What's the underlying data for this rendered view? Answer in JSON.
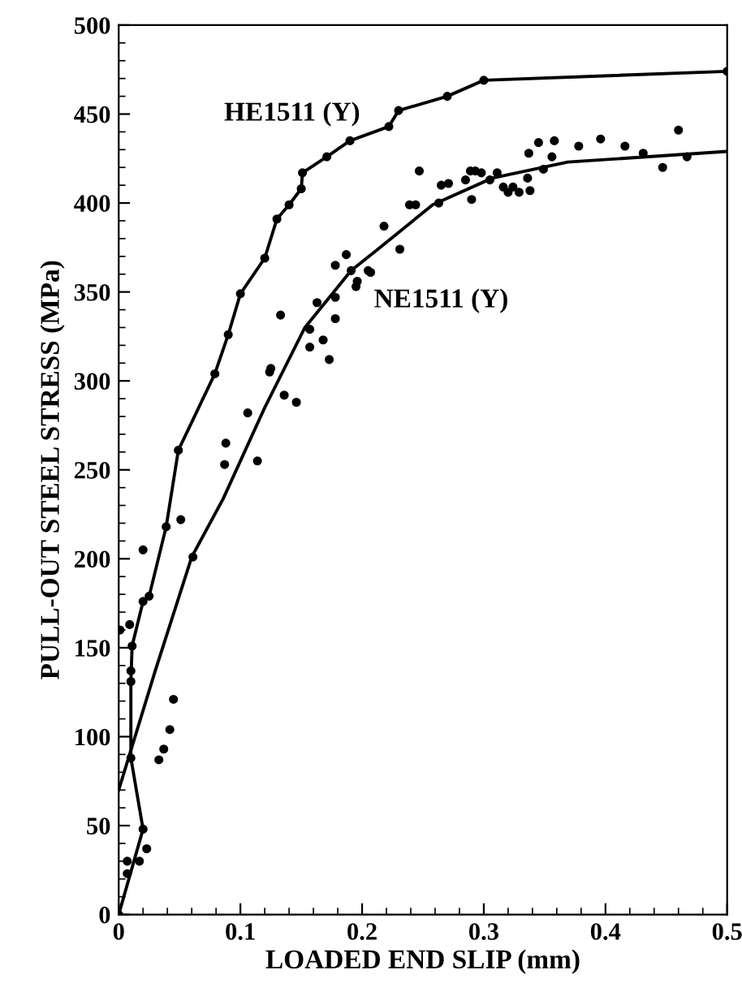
{
  "chart_data": {
    "type": "line",
    "xlabel": "LOADED END SLIP (mm)",
    "ylabel": "PULL-OUT STEEL STRESS (MPa)",
    "xlim": [
      0,
      0.5
    ],
    "ylim": [
      0,
      500
    ],
    "xticks": [
      0,
      0.1,
      0.2,
      0.3,
      0.4,
      0.5
    ],
    "yticks": [
      0,
      50,
      100,
      150,
      200,
      250,
      300,
      350,
      400,
      450,
      500
    ],
    "grid": false,
    "legend": false,
    "series": [
      {
        "name": "HE1511 (Y)",
        "marker": "circle",
        "color": "#000000",
        "x": [
          0,
          0.02,
          0.01,
          0.01,
          0.011,
          0.02,
          0.025,
          0.039,
          0.049,
          0.079,
          0.09,
          0.1,
          0.12,
          0.13,
          0.14,
          0.15,
          0.151,
          0.171,
          0.19,
          0.222,
          0.23,
          0.27,
          0.3,
          0.5
        ],
        "values": [
          0,
          48,
          88,
          131,
          151,
          176,
          179,
          218,
          261,
          304,
          326,
          349,
          369,
          391,
          399,
          408,
          417,
          426,
          435,
          443,
          452,
          460,
          469,
          474
        ]
      },
      {
        "name": "NE1511 (Y)",
        "marker": "none",
        "color": "#000000",
        "x": [
          0,
          0.03,
          0.06,
          0.086,
          0.12,
          0.153,
          0.191,
          0.213,
          0.258,
          0.307,
          0.369,
          0.5
        ],
        "values": [
          70,
          137,
          201,
          234,
          285,
          330,
          362,
          374,
          399,
          414,
          423,
          429
        ]
      },
      {
        "type": "scatter",
        "marker": "circle",
        "color": "#000000",
        "x": [
          0.001,
          0.009,
          0.01,
          0.02,
          0.051,
          0.061,
          0.045,
          0.042,
          0.037,
          0.033,
          0.007,
          0.007,
          0.017,
          0.023,
          0.088,
          0.087,
          0.114,
          0.106,
          0.124,
          0.125,
          0.136,
          0.146,
          0.133,
          0.157,
          0.168,
          0.173,
          0.178,
          0.163,
          0.157,
          0.178,
          0.187,
          0.178,
          0.191,
          0.195,
          0.207,
          0.218,
          0.231,
          0.239,
          0.247,
          0.244,
          0.263,
          0.265,
          0.271,
          0.285,
          0.289,
          0.293,
          0.29,
          0.305,
          0.311,
          0.316,
          0.32,
          0.324,
          0.329,
          0.336,
          0.338,
          0.337,
          0.345,
          0.349,
          0.358,
          0.356,
          0.378,
          0.396,
          0.416,
          0.431,
          0.447,
          0.46,
          0.467,
          0.298,
          0.205,
          0.196
        ],
        "values": [
          160,
          163,
          137,
          205,
          222,
          201,
          121,
          104,
          93,
          87,
          30,
          23,
          30,
          37,
          265,
          253,
          255,
          282,
          305,
          307,
          292,
          288,
          337,
          319,
          323,
          312,
          335,
          344,
          329,
          347,
          371,
          365,
          362,
          353,
          361,
          387,
          374,
          399,
          418,
          399,
          400,
          410,
          411,
          413,
          418,
          418,
          402,
          413,
          417,
          409,
          406,
          409,
          406,
          414,
          407,
          428,
          434,
          419,
          435,
          426,
          432,
          436,
          432,
          428,
          420,
          441,
          426,
          417,
          362,
          356
        ]
      }
    ]
  }
}
